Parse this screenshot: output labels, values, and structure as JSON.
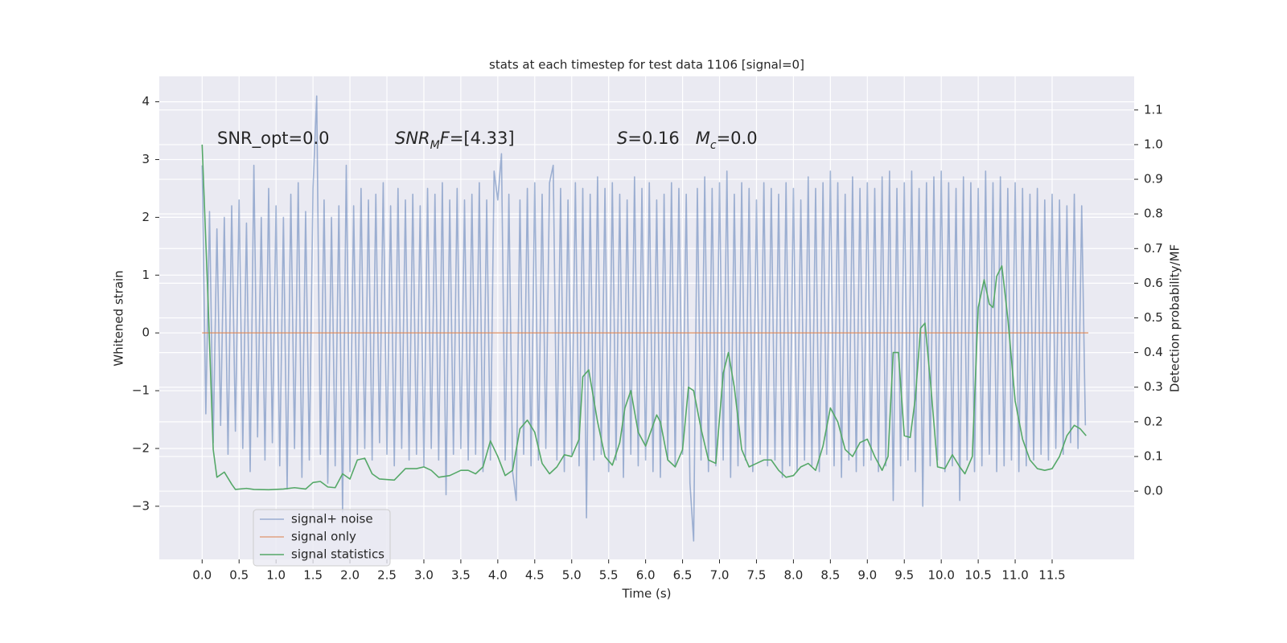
{
  "chart_data": {
    "type": "line",
    "title": "stats at each timestep for test data 1106 [signal=0]",
    "xlabel": "Time (s)",
    "ylabel": "Whitened strain",
    "y2label": "Detection probability/MF",
    "grid": true,
    "legend": "lower left",
    "xlim": [
      -0.58,
      12.61
    ],
    "ylim": [
      -3.92,
      4.44
    ],
    "y2lim": [
      -0.197,
      1.197
    ],
    "xticks": [
      {
        "value": 0,
        "label": "0.0"
      },
      0.5,
      {
        "value": 1,
        "label": "1.0"
      },
      1.5,
      {
        "value": 2,
        "label": "2.0"
      },
      2.5,
      {
        "value": 3,
        "label": "3.0"
      },
      3.5,
      {
        "value": 4,
        "label": "4.0"
      },
      4.5,
      {
        "value": 5,
        "label": "5.0"
      },
      5.5,
      {
        "value": 6,
        "label": "6.0"
      },
      6.5,
      {
        "value": 7,
        "label": "7.0"
      },
      7.5,
      {
        "value": 8,
        "label": "8.0"
      },
      8.5,
      {
        "value": 9,
        "label": "9.0"
      },
      9.5,
      {
        "value": 10,
        "label": "10.0"
      },
      10.5,
      {
        "value": 11,
        "label": "11.0"
      },
      11.5
    ],
    "yticks": [
      {
        "value": -3,
        "label": "−3"
      },
      {
        "value": -2,
        "label": "−2"
      },
      {
        "value": -1,
        "label": "−1"
      },
      0,
      1,
      2,
      3,
      4
    ],
    "y2ticks": [
      {
        "value": 0,
        "label": "0.0"
      },
      0.1,
      0.2,
      0.3,
      0.4,
      0.5,
      0.6,
      0.7,
      0.8,
      0.9,
      {
        "value": 1,
        "label": "1.0"
      },
      1.1
    ],
    "annotations": [
      {
        "parts": [
          {
            "text": "SNR_opt=0.0"
          }
        ]
      },
      {
        "parts": [
          {
            "text": "SNR",
            "italic": true
          },
          {
            "text": "M",
            "italic": true,
            "sub": true
          },
          {
            "text": "F",
            "italic": true
          },
          {
            "text": "=[4.33]"
          }
        ]
      },
      {
        "parts": [
          {
            "text": "S",
            "italic": true
          },
          {
            "text": "=0.16   "
          },
          {
            "text": "M",
            "italic": true
          },
          {
            "text": "c",
            "italic": true,
            "sub": true
          },
          {
            "text": "=0.0"
          }
        ]
      }
    ],
    "series": [
      {
        "name": "signal+ noise",
        "color": "#4c72b0",
        "opacity": 0.5,
        "x": [
          0,
          0.05,
          0.1,
          0.15,
          0.2,
          0.25,
          0.3,
          0.35,
          0.4,
          0.45,
          0.5,
          0.55,
          0.6,
          0.65,
          0.7,
          0.75,
          0.8,
          0.85,
          0.9,
          0.95,
          1,
          1.05,
          1.1,
          1.15,
          1.2,
          1.25,
          1.3,
          1.35,
          1.4,
          1.45,
          1.5,
          1.55,
          1.6,
          1.65,
          1.7,
          1.75,
          1.8,
          1.85,
          1.9,
          1.95,
          2,
          2.05,
          2.1,
          2.15,
          2.2,
          2.25,
          2.3,
          2.35,
          2.4,
          2.45,
          2.5,
          2.55,
          2.6,
          2.65,
          2.7,
          2.75,
          2.8,
          2.85,
          2.9,
          2.95,
          3,
          3.05,
          3.1,
          3.15,
          3.2,
          3.25,
          3.3,
          3.35,
          3.4,
          3.45,
          3.5,
          3.55,
          3.6,
          3.65,
          3.7,
          3.75,
          3.8,
          3.85,
          3.9,
          3.95,
          4,
          4.05,
          4.1,
          4.15,
          4.2,
          4.25,
          4.3,
          4.35,
          4.4,
          4.45,
          4.5,
          4.55,
          4.6,
          4.65,
          4.7,
          4.75,
          4.8,
          4.85,
          4.9,
          4.95,
          5,
          5.05,
          5.1,
          5.15,
          5.2,
          5.25,
          5.3,
          5.35,
          5.4,
          5.45,
          5.5,
          5.55,
          5.6,
          5.65,
          5.7,
          5.75,
          5.8,
          5.85,
          5.9,
          5.95,
          6,
          6.05,
          6.1,
          6.15,
          6.2,
          6.25,
          6.3,
          6.35,
          6.4,
          6.45,
          6.5,
          6.55,
          6.6,
          6.65,
          6.7,
          6.75,
          6.8,
          6.85,
          6.9,
          6.95,
          7,
          7.05,
          7.1,
          7.15,
          7.2,
          7.25,
          7.3,
          7.35,
          7.4,
          7.45,
          7.5,
          7.55,
          7.6,
          7.65,
          7.7,
          7.75,
          7.8,
          7.85,
          7.9,
          7.95,
          8,
          8.05,
          8.1,
          8.15,
          8.2,
          8.25,
          8.3,
          8.35,
          8.4,
          8.45,
          8.5,
          8.55,
          8.6,
          8.65,
          8.7,
          8.75,
          8.8,
          8.85,
          8.9,
          8.95,
          9,
          9.05,
          9.1,
          9.15,
          9.2,
          9.25,
          9.3,
          9.35,
          9.4,
          9.45,
          9.5,
          9.55,
          9.6,
          9.65,
          9.7,
          9.75,
          9.8,
          9.85,
          9.9,
          9.95,
          10,
          10.05,
          10.1,
          10.15,
          10.2,
          10.25,
          10.3,
          10.35,
          10.4,
          10.45,
          10.5,
          10.55,
          10.6,
          10.65,
          10.7,
          10.75,
          10.8,
          10.85,
          10.9,
          10.95,
          11,
          11.05,
          11.1,
          11.15,
          11.2,
          11.25,
          11.3,
          11.35,
          11.4,
          11.45,
          11.5,
          11.55,
          11.6,
          11.65,
          11.7,
          11.75,
          11.8,
          11.85,
          11.9,
          11.95
        ],
        "values": [
          2.9,
          -1.4,
          2.1,
          -1.9,
          1.8,
          -1.6,
          2.0,
          -2.1,
          2.2,
          -1.7,
          2.3,
          -2.0,
          1.9,
          -2.4,
          2.9,
          -1.8,
          2.0,
          -2.2,
          2.5,
          -1.9,
          2.2,
          -2.3,
          2.0,
          -2.7,
          2.4,
          -2.0,
          2.6,
          -2.5,
          2.1,
          -2.2,
          2.5,
          4.1,
          -2.1,
          2.3,
          -2.6,
          2.0,
          -2.3,
          2.2,
          -3.1,
          2.9,
          -2.4,
          2.2,
          -2.1,
          2.5,
          -2.0,
          2.3,
          -2.2,
          2.4,
          -1.9,
          2.6,
          -2.1,
          2.2,
          -2.3,
          2.5,
          -2.0,
          2.3,
          -2.2,
          2.4,
          -2.1,
          2.2,
          -2.3,
          2.5,
          -2.0,
          2.4,
          -2.2,
          2.6,
          -2.8,
          2.3,
          -2.1,
          2.5,
          -2.0,
          2.3,
          -2.2,
          2.4,
          -2.1,
          2.6,
          -2.4,
          2.3,
          -2.2,
          2.8,
          2.3,
          3.1,
          -2.2,
          2.4,
          -2.4,
          -2.9,
          2.3,
          -2.1,
          2.5,
          -2.3,
          2.6,
          -2.2,
          2.4,
          -2.0,
          2.6,
          2.9,
          -2.2,
          2.5,
          -2.4,
          2.3,
          -2.1,
          2.6,
          -2.3,
          2.5,
          -3.2,
          2.4,
          -2.2,
          2.7,
          -2.1,
          2.5,
          -2.4,
          2.6,
          -2.2,
          2.4,
          -2.5,
          2.3,
          -2.1,
          2.7,
          -2.3,
          2.5,
          -2.2,
          2.6,
          -2.4,
          2.3,
          -2.5,
          2.4,
          -2.2,
          2.6,
          -2.3,
          2.5,
          -2.1,
          2.4,
          -2.6,
          -3.6,
          2.5,
          -2.2,
          2.7,
          -2.4,
          2.5,
          -2.3,
          2.6,
          -2.2,
          2.8,
          -2.5,
          2.4,
          -2.3,
          2.6,
          -2.2,
          2.5,
          -2.4,
          2.3,
          -2.1,
          2.6,
          -2.3,
          2.5,
          -2.2,
          2.4,
          -2.5,
          2.6,
          -2.3,
          2.5,
          -2.4,
          2.3,
          -2.2,
          2.7,
          -2.3,
          2.5,
          -2.4,
          2.6,
          -2.1,
          2.8,
          -2.3,
          2.6,
          -2.5,
          2.4,
          -2.2,
          2.7,
          -2.4,
          2.5,
          -2.3,
          2.6,
          -2.2,
          2.5,
          -2.4,
          2.7,
          -2.3,
          2.8,
          -2.9,
          2.5,
          -2.3,
          2.6,
          -2.2,
          2.8,
          -2.4,
          2.5,
          -3.0,
          2.6,
          -2.3,
          2.7,
          -2.2,
          2.8,
          -2.4,
          2.6,
          -2.3,
          2.5,
          -2.9,
          2.7,
          -2.2,
          2.6,
          -2.4,
          2.5,
          -2.3,
          2.8,
          -2.1,
          2.6,
          -2.4,
          2.7,
          -2.3,
          2.5,
          -2.2,
          2.6,
          -2.4,
          2.5,
          -2.3,
          2.4,
          -2.2,
          2.5,
          -2.1,
          2.3,
          -2.2,
          2.4,
          -2.0,
          2.3,
          -2.1,
          2.2,
          -1.9,
          2.4,
          -2.0,
          2.2,
          -1.6
        ]
      },
      {
        "name": "signal only",
        "color": "#dd8452",
        "opacity": 0.7,
        "x": [
          0,
          11.99
        ],
        "values": [
          0,
          0
        ]
      },
      {
        "name": "signal statistics",
        "color": "#55a868",
        "opacity": 1,
        "axis": "y2",
        "x": [
          0,
          0.08,
          0.15,
          0.2,
          0.3,
          0.4,
          0.45,
          0.6,
          0.7,
          0.9,
          1.1,
          1.25,
          1.4,
          1.5,
          1.6,
          1.7,
          1.8,
          1.9,
          2.0,
          2.1,
          2.2,
          2.3,
          2.4,
          2.6,
          2.75,
          2.9,
          3.0,
          3.1,
          3.2,
          3.35,
          3.5,
          3.6,
          3.7,
          3.8,
          3.9,
          4.0,
          4.1,
          4.2,
          4.3,
          4.4,
          4.5,
          4.6,
          4.7,
          4.8,
          4.9,
          5.0,
          5.1,
          5.15,
          5.23,
          5.35,
          5.45,
          5.55,
          5.65,
          5.72,
          5.8,
          5.9,
          6.0,
          6.1,
          6.15,
          6.2,
          6.3,
          6.4,
          6.5,
          6.58,
          6.65,
          6.75,
          6.85,
          6.95,
          7.05,
          7.12,
          7.2,
          7.3,
          7.4,
          7.5,
          7.6,
          7.7,
          7.8,
          7.9,
          8.0,
          8.1,
          8.2,
          8.3,
          8.4,
          8.5,
          8.6,
          8.7,
          8.8,
          8.9,
          9.0,
          9.1,
          9.2,
          9.28,
          9.35,
          9.42,
          9.5,
          9.58,
          9.65,
          9.72,
          9.78,
          9.86,
          9.95,
          10.05,
          10.15,
          10.25,
          10.32,
          10.42,
          10.5,
          10.58,
          10.65,
          10.7,
          10.75,
          10.82,
          10.9,
          11.0,
          11.1,
          11.2,
          11.3,
          11.4,
          11.5,
          11.6,
          11.7,
          11.8,
          11.88,
          11.96
        ],
        "values": [
          1.0,
          0.55,
          0.12,
          0.04,
          0.055,
          0.02,
          0.005,
          0.008,
          0.005,
          0.004,
          0.006,
          0.01,
          0.006,
          0.025,
          0.028,
          0.012,
          0.01,
          0.05,
          0.035,
          0.09,
          0.095,
          0.05,
          0.035,
          0.032,
          0.065,
          0.065,
          0.07,
          0.06,
          0.04,
          0.045,
          0.06,
          0.06,
          0.05,
          0.07,
          0.145,
          0.1,
          0.045,
          0.06,
          0.18,
          0.205,
          0.17,
          0.08,
          0.05,
          0.07,
          0.105,
          0.1,
          0.15,
          0.33,
          0.35,
          0.2,
          0.1,
          0.075,
          0.14,
          0.24,
          0.29,
          0.17,
          0.13,
          0.19,
          0.22,
          0.2,
          0.09,
          0.07,
          0.12,
          0.3,
          0.29,
          0.18,
          0.09,
          0.08,
          0.34,
          0.4,
          0.3,
          0.12,
          0.07,
          0.08,
          0.09,
          0.09,
          0.06,
          0.04,
          0.045,
          0.07,
          0.08,
          0.06,
          0.13,
          0.24,
          0.2,
          0.12,
          0.1,
          0.14,
          0.15,
          0.1,
          0.06,
          0.1,
          0.4,
          0.4,
          0.16,
          0.155,
          0.27,
          0.47,
          0.485,
          0.3,
          0.07,
          0.065,
          0.105,
          0.07,
          0.05,
          0.1,
          0.53,
          0.61,
          0.54,
          0.53,
          0.62,
          0.65,
          0.5,
          0.26,
          0.15,
          0.09,
          0.065,
          0.06,
          0.065,
          0.1,
          0.16,
          0.19,
          0.18,
          0.16
        ]
      }
    ]
  }
}
